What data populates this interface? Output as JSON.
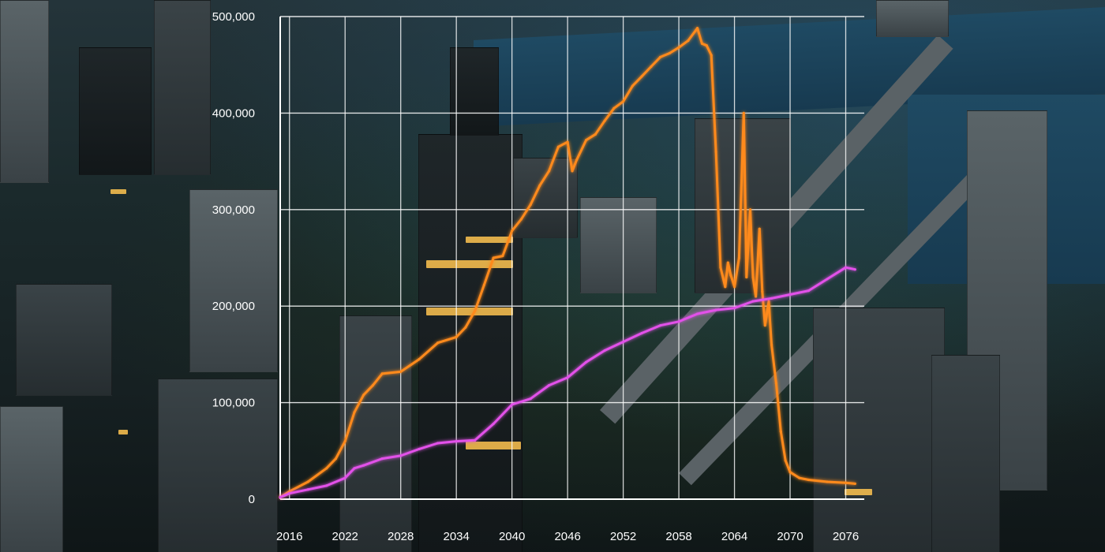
{
  "chart_data": {
    "type": "line",
    "title": "",
    "xlabel": "",
    "ylabel": "",
    "xlim": [
      2015,
      2078
    ],
    "ylim": [
      0,
      500000
    ],
    "grid": true,
    "legend": "none",
    "x_ticks": [
      "2016",
      "2022",
      "2028",
      "2034",
      "2040",
      "2046",
      "2052",
      "2058",
      "2064",
      "2070",
      "2076"
    ],
    "y_ticks": [
      "0",
      "100,000",
      "200,000",
      "300,000",
      "400,000",
      "500,000"
    ],
    "series": [
      {
        "color": "#ff8a1c",
        "x": [
          2015,
          2016,
          2018,
          2020,
          2021,
          2022,
          2023,
          2024,
          2025,
          2026,
          2028,
          2030,
          2032,
          2034,
          2035,
          2036,
          2037,
          2038,
          2039,
          2040,
          2041,
          2042,
          2043,
          2044,
          2045,
          2046,
          2046.5,
          2047,
          2048,
          2049,
          2050,
          2051,
          2052,
          2053,
          2054,
          2055,
          2056,
          2057,
          2058,
          2059,
          2060,
          2060.5,
          2061,
          2061.5,
          2062,
          2062.5,
          2063,
          2063.3,
          2063.6,
          2064,
          2064.5,
          2065,
          2065.3,
          2065.7,
          2066,
          2066.3,
          2066.7,
          2067,
          2067.3,
          2067.7,
          2068,
          2068.5,
          2069,
          2069.5,
          2070,
          2071,
          2072,
          2074,
          2076,
          2077
        ],
        "y": [
          2000,
          8000,
          18000,
          32000,
          42000,
          60000,
          90000,
          108000,
          118000,
          130000,
          132000,
          145000,
          162000,
          168000,
          178000,
          195000,
          222000,
          250000,
          252000,
          278000,
          290000,
          305000,
          325000,
          340000,
          365000,
          370000,
          340000,
          352000,
          372000,
          378000,
          392000,
          405000,
          412000,
          428000,
          438000,
          448000,
          458000,
          462000,
          468000,
          475000,
          488000,
          472000,
          470000,
          460000,
          360000,
          240000,
          220000,
          245000,
          232000,
          220000,
          250000,
          400000,
          230000,
          300000,
          230000,
          210000,
          280000,
          215000,
          180000,
          205000,
          160000,
          120000,
          70000,
          40000,
          28000,
          22000,
          20000,
          18000,
          17000,
          16000
        ]
      },
      {
        "color": "#e251e9",
        "x": [
          2015,
          2016,
          2018,
          2020,
          2022,
          2023,
          2024,
          2026,
          2028,
          2030,
          2032,
          2034,
          2036,
          2038,
          2040,
          2042,
          2044,
          2046,
          2048,
          2050,
          2052,
          2054,
          2056,
          2058,
          2060,
          2062,
          2064,
          2066,
          2068,
          2070,
          2072,
          2074,
          2076,
          2077
        ],
        "y": [
          2000,
          6000,
          10000,
          14000,
          22000,
          32000,
          35000,
          42000,
          45000,
          52000,
          58000,
          60000,
          61000,
          78000,
          98000,
          104000,
          118000,
          126000,
          142000,
          154000,
          163000,
          172000,
          180000,
          184000,
          192000,
          196000,
          198000,
          205000,
          208000,
          212000,
          216000,
          228000,
          240000,
          238000
        ]
      }
    ]
  }
}
